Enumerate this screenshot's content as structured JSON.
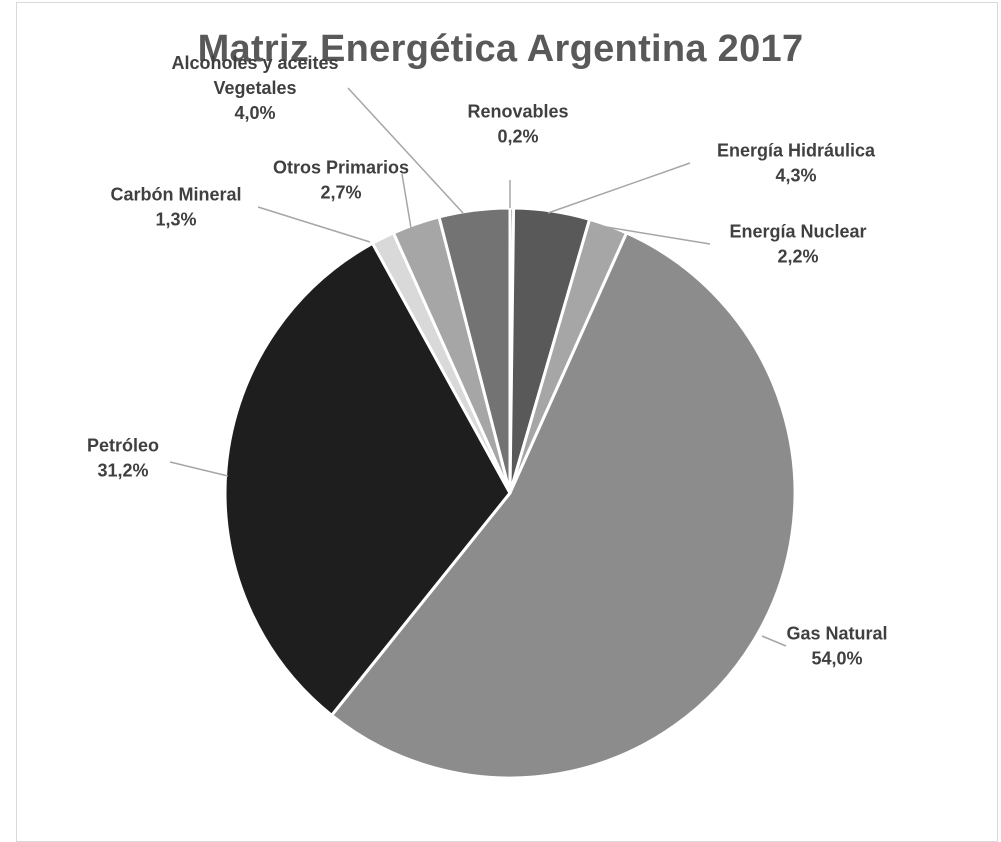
{
  "chart_data": {
    "type": "pie",
    "title": "Matriz Energética Argentina 2017",
    "slices": [
      {
        "label_lines": [
          "Renovables"
        ],
        "value": 0.2,
        "value_label": "0,2%",
        "color": "#7f7f7f"
      },
      {
        "label_lines": [
          "Energía Hidráulica"
        ],
        "value": 4.3,
        "value_label": "4,3%",
        "color": "#595959"
      },
      {
        "label_lines": [
          "Energía Nuclear"
        ],
        "value": 2.2,
        "value_label": "2,2%",
        "color": "#a6a6a6"
      },
      {
        "label_lines": [
          "Gas Natural"
        ],
        "value": 54.0,
        "value_label": "54,0%",
        "color": "#8c8c8c"
      },
      {
        "label_lines": [
          "Petróleo"
        ],
        "value": 31.2,
        "value_label": "31,2%",
        "color": "#1e1e1e"
      },
      {
        "label_lines": [
          "Carbón Mineral"
        ],
        "value": 1.3,
        "value_label": "1,3%",
        "color": "#d9d9d9"
      },
      {
        "label_lines": [
          "Otros Primarios"
        ],
        "value": 2.7,
        "value_label": "2,7%",
        "color": "#a6a6a6"
      },
      {
        "label_lines": [
          "Alcoholes y aceites",
          "Vegetales"
        ],
        "value": 4.0,
        "value_label": "4,0%",
        "color": "#737373"
      }
    ],
    "legend": "none",
    "label_style": "outside with leader lines",
    "start_angle_deg": 0,
    "direction": "clockwise"
  }
}
